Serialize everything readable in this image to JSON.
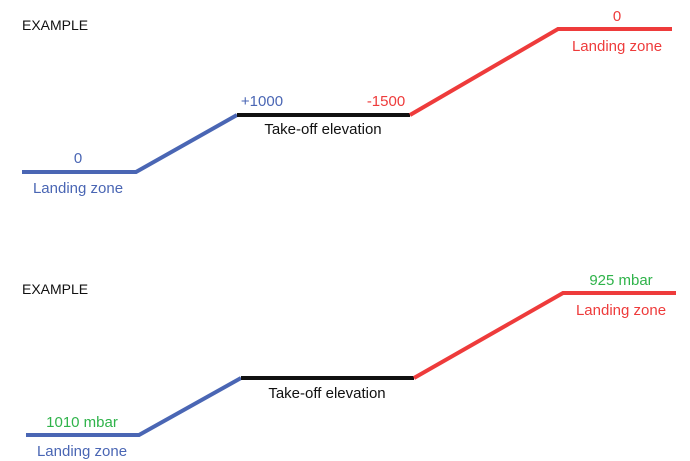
{
  "colors": {
    "landing_left": "#4a66b4",
    "takeoff": "#111111",
    "landing_right": "#ee3b3b",
    "pressure": "#2fb34a"
  },
  "example1": {
    "heading": "EXAMPLE",
    "left_value": "0",
    "left_label": "Landing zone",
    "rise_value": "+1000",
    "takeoff_label": "Take-off elevation",
    "drop_value": "-1500",
    "right_value": "0",
    "right_label": "Landing zone"
  },
  "example2": {
    "heading": "EXAMPLE",
    "left_value": "1010 mbar",
    "left_label": "Landing zone",
    "takeoff_label": "Take-off elevation",
    "right_value": "925 mbar",
    "right_label": "Landing zone"
  }
}
